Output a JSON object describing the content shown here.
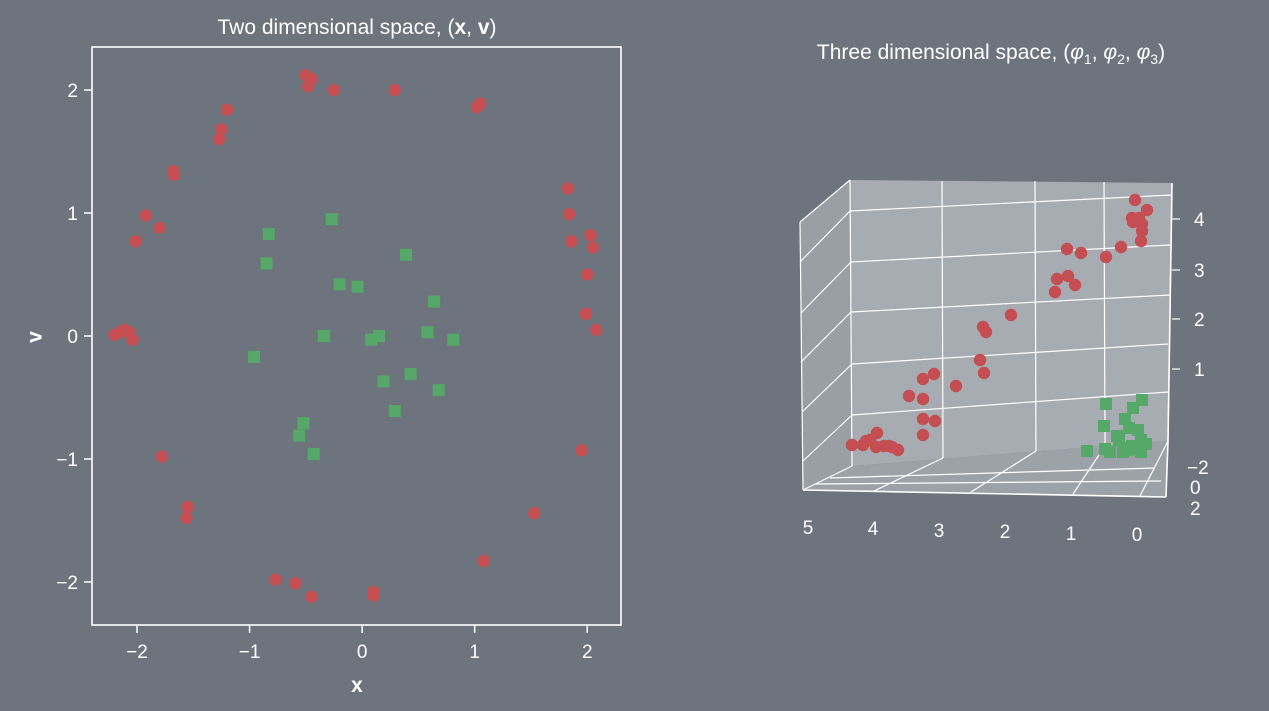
{
  "colors": {
    "background": "#6d747d",
    "class_a": "#c44e52",
    "class_b": "#55a868",
    "pane": "#a7acb2",
    "foreground": "#ffffff"
  },
  "chart_data": [
    {
      "type": "scatter",
      "title_plain": "Two dimensional space, (",
      "title_b1": "x",
      "title_sep": ", ",
      "title_b2": "v",
      "title_end": ")",
      "xlabel": "x",
      "ylabel": "v",
      "xlim": [
        -2.4,
        2.3
      ],
      "ylim": [
        -2.35,
        2.35
      ],
      "xticks": [
        -2,
        -1,
        0,
        1,
        2
      ],
      "xtick_labels": [
        "−2",
        "−1",
        "0",
        "1",
        "2"
      ],
      "yticks": [
        -2,
        -1,
        0,
        1,
        2
      ],
      "ytick_labels": [
        "−2",
        "−1",
        "0",
        "1",
        "2"
      ],
      "grid": false,
      "series": [
        {
          "marker": "circle",
          "color": "#c44e52",
          "x": [
            -0.5,
            -0.45,
            -0.48,
            -0.25,
            0.29,
            1.02,
            1.05,
            -1.2,
            -1.25,
            -1.27,
            -1.68,
            -1.67,
            -1.92,
            -1.8,
            -2.01,
            -2.2,
            -2.15,
            -2.11,
            -2.07,
            -2.04,
            1.83,
            1.84,
            1.86,
            2.03,
            2.05,
            2.0,
            1.99,
            2.08,
            1.95,
            -1.78,
            -1.55,
            -1.56,
            -0.77,
            -0.59,
            -0.45,
            0.1,
            0.1,
            1.53,
            1.08
          ],
          "y": [
            2.12,
            2.09,
            2.03,
            2.0,
            2.0,
            1.86,
            1.89,
            1.84,
            1.68,
            1.6,
            1.34,
            1.31,
            0.98,
            0.88,
            0.77,
            0.01,
            0.03,
            0.05,
            0.03,
            -0.03,
            1.2,
            0.99,
            0.77,
            0.82,
            0.72,
            0.5,
            0.18,
            0.05,
            -0.93,
            -0.98,
            -1.39,
            -1.48,
            -1.98,
            -2.01,
            -2.12,
            -2.08,
            -2.11,
            -1.44,
            -1.83
          ]
        },
        {
          "marker": "square",
          "color": "#55a868",
          "x": [
            -0.27,
            -0.83,
            -0.85,
            0.39,
            -0.2,
            -0.04,
            0.64,
            -0.34,
            0.08,
            0.15,
            0.58,
            0.81,
            -0.96,
            0.19,
            0.43,
            0.68,
            0.29,
            -0.52,
            -0.56,
            -0.43
          ],
          "y": [
            0.95,
            0.83,
            0.59,
            0.66,
            0.42,
            0.4,
            0.28,
            0.0,
            -0.03,
            0.0,
            0.03,
            -0.03,
            -0.17,
            -0.37,
            -0.31,
            -0.44,
            -0.61,
            -0.71,
            -0.81,
            -0.96
          ]
        }
      ]
    },
    {
      "type": "scatter3d",
      "title_plain": "Three dimensional space, (",
      "phi": "φ",
      "subs": [
        "1",
        "2",
        "3"
      ],
      "sep": ", ",
      "title_end": ")",
      "xticks": [
        "5",
        "4",
        "3",
        "2",
        "1",
        "0"
      ],
      "yticks": [
        "−2",
        "0",
        "2"
      ],
      "zticks": [
        "1",
        "2",
        "3",
        "4"
      ],
      "series": [
        {
          "marker": "circle",
          "color": "#c44e52",
          "count": 39
        },
        {
          "marker": "square",
          "color": "#55a868",
          "count": 20
        }
      ]
    }
  ]
}
